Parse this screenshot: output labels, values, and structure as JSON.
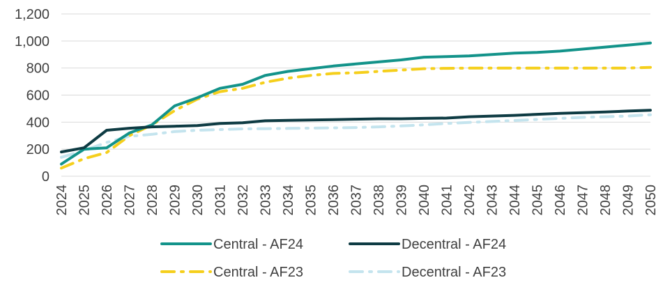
{
  "chart_data": {
    "type": "line",
    "title": "",
    "xlabel": "",
    "ylabel": "",
    "x": [
      "2024",
      "2025",
      "2026",
      "2027",
      "2028",
      "2029",
      "2030",
      "2031",
      "2032",
      "2033",
      "2034",
      "2035",
      "2036",
      "2037",
      "2038",
      "2039",
      "2040",
      "2041",
      "2042",
      "2043",
      "2044",
      "2045",
      "2046",
      "2047",
      "2048",
      "2049",
      "2050"
    ],
    "ylim": [
      0,
      1200
    ],
    "yticks": [
      "0",
      "200",
      "400",
      "600",
      "800",
      "1,000",
      "1,200"
    ],
    "grid": "horizontal",
    "legend_position": "bottom",
    "series": [
      {
        "name": "Central - AF24",
        "color": "#13938a",
        "style": "solid",
        "values": [
          90,
          200,
          210,
          320,
          380,
          520,
          580,
          650,
          680,
          745,
          775,
          795,
          815,
          830,
          845,
          860,
          880,
          885,
          890,
          900,
          910,
          915,
          925,
          940,
          955,
          970,
          985
        ]
      },
      {
        "name": "Decentral - AF24",
        "color": "#0e3b43",
        "style": "solid",
        "values": [
          180,
          210,
          340,
          355,
          365,
          370,
          375,
          390,
          395,
          410,
          413,
          416,
          418,
          422,
          425,
          425,
          428,
          430,
          440,
          445,
          450,
          458,
          465,
          470,
          475,
          482,
          488
        ]
      },
      {
        "name": "Central - AF23",
        "color": "#f5cf1c",
        "style": "dashdot",
        "values": [
          60,
          130,
          175,
          300,
          380,
          485,
          570,
          625,
          650,
          695,
          725,
          745,
          760,
          765,
          775,
          785,
          795,
          798,
          800,
          800,
          800,
          800,
          800,
          800,
          800,
          800,
          805
        ]
      },
      {
        "name": "Decentral - AF23",
        "color": "#c4e4ee",
        "style": "dashdot",
        "values": [
          140,
          190,
          250,
          295,
          310,
          330,
          340,
          345,
          350,
          352,
          354,
          356,
          358,
          360,
          365,
          372,
          380,
          390,
          398,
          405,
          412,
          420,
          428,
          435,
          440,
          445,
          455
        ]
      }
    ]
  }
}
